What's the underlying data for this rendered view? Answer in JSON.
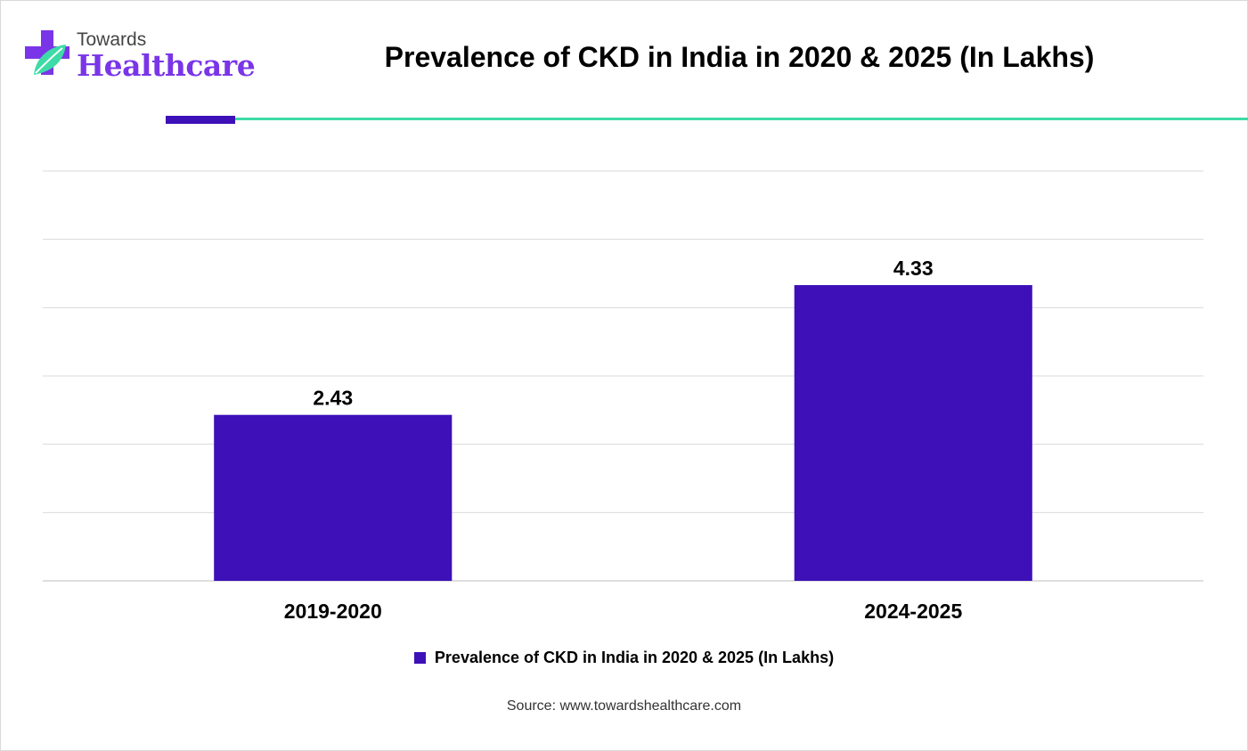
{
  "brand": {
    "line1": "Towards",
    "line2": "Healthcare",
    "purple": "#7a35e8",
    "teal": "#3ddba6"
  },
  "chart_data": {
    "type": "bar",
    "title": "Prevalence of CKD in India in 2020 & 2025 (In Lakhs)",
    "categories": [
      "2019-2020",
      "2024-2025"
    ],
    "series": [
      {
        "name": "Prevalence of CKD in India in 2020 & 2025 (In Lakhs)",
        "values": [
          2.43,
          4.33
        ],
        "labels": [
          "2.43",
          "4.33"
        ],
        "color": "#3d10b8"
      }
    ],
    "ylim": [
      0,
      6
    ],
    "grid": true,
    "legend_position": "bottom",
    "xlabel": "",
    "ylabel": ""
  },
  "source": "Source: www.towardshealthcare.com"
}
